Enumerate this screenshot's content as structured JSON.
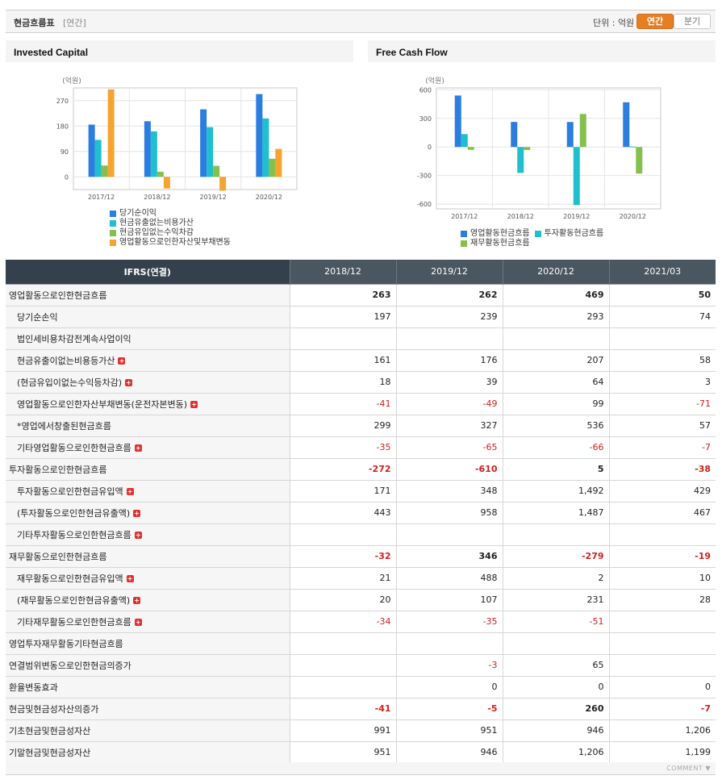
{
  "header": {
    "title": "현금흐름표",
    "subtitle": "[연간]",
    "unit_label": "단위 : 억원",
    "btn_annual": "연간",
    "btn_quarter": "분기"
  },
  "colors": {
    "blue": "#2b7de0",
    "cyan": "#1fbfcf",
    "green": "#84c04b",
    "orange": "#f5a431",
    "negative": "#d21f1f",
    "active": "#e67e22"
  },
  "invested_capital": {
    "title": "Invested Capital",
    "chart_data": {
      "type": "bar",
      "unit_label": "(억원)",
      "categories": [
        "2017/12",
        "2018/12",
        "2019/12",
        "2020/12"
      ],
      "ylim": [
        -45,
        315
      ],
      "yticks": [
        0,
        90,
        180,
        270
      ],
      "series": [
        {
          "name": "당기순이익",
          "color": "#2b7de0",
          "values": [
            185,
            197,
            239,
            293
          ]
        },
        {
          "name": "현금유출없는비용가산",
          "color": "#1fbfcf",
          "values": [
            131,
            161,
            176,
            207
          ]
        },
        {
          "name": "현금유입없는수익차감",
          "color": "#84c04b",
          "values": [
            40,
            18,
            39,
            64
          ]
        },
        {
          "name": "영업활동으로인한자산및부채변동",
          "color": "#f5a431",
          "values": [
            310,
            -41,
            -49,
            99
          ]
        }
      ]
    }
  },
  "free_cash_flow": {
    "title": "Free Cash Flow",
    "chart_data": {
      "type": "bar",
      "unit_label": "(억원)",
      "categories": [
        "2017/12",
        "2018/12",
        "2019/12",
        "2020/12"
      ],
      "ylim": [
        -650,
        620
      ],
      "yticks": [
        600,
        300,
        0,
        -300,
        -600
      ],
      "series": [
        {
          "name": "영업활동현금흐름",
          "color": "#2b7de0",
          "values": [
            540,
            263,
            262,
            469
          ]
        },
        {
          "name": "투자활동현금흐름",
          "color": "#1fbfcf",
          "values": [
            135,
            -272,
            -610,
            5
          ]
        },
        {
          "name": "재무활동현금흐름",
          "color": "#84c04b",
          "values": [
            -30,
            -32,
            346,
            -279
          ]
        }
      ]
    }
  },
  "table": {
    "header_first": "IFRS(연결)",
    "columns": [
      "2018/12",
      "2019/12",
      "2020/12",
      "2021/03"
    ],
    "rows": [
      {
        "label": "영업활동으로인한현금흐름",
        "level": "major",
        "expand": false,
        "values": [
          "263",
          "262",
          "469",
          "50"
        ]
      },
      {
        "label": "당기순손익",
        "level": "sub",
        "expand": false,
        "values": [
          "197",
          "239",
          "293",
          "74"
        ]
      },
      {
        "label": "법인세비용차감전계속사업이익",
        "level": "sub",
        "expand": false,
        "values": [
          "",
          "",
          "",
          ""
        ]
      },
      {
        "label": "현금유출이없는비용등가산",
        "level": "sub",
        "expand": true,
        "values": [
          "161",
          "176",
          "207",
          "58"
        ]
      },
      {
        "label": "(현금유입이없는수익등차감)",
        "level": "sub",
        "expand": true,
        "values": [
          "18",
          "39",
          "64",
          "3"
        ]
      },
      {
        "label": "영업활동으로인한자산부채변동(운전자본변동)",
        "level": "sub",
        "expand": true,
        "values": [
          "-41",
          "-49",
          "99",
          "-71"
        ]
      },
      {
        "label": "*영업에서창출된현금흐름",
        "level": "sub",
        "expand": false,
        "values": [
          "299",
          "327",
          "536",
          "57"
        ]
      },
      {
        "label": "기타영업활동으로인한현금흐름",
        "level": "sub",
        "expand": true,
        "values": [
          "-35",
          "-65",
          "-66",
          "-7"
        ]
      },
      {
        "label": "투자활동으로인한현금흐름",
        "level": "major",
        "expand": false,
        "values": [
          "-272",
          "-610",
          "5",
          "-38"
        ]
      },
      {
        "label": "투자활동으로인한현금유입액",
        "level": "sub",
        "expand": true,
        "values": [
          "171",
          "348",
          "1,492",
          "429"
        ]
      },
      {
        "label": "(투자활동으로인한현금유출액)",
        "level": "sub",
        "expand": true,
        "values": [
          "443",
          "958",
          "1,487",
          "467"
        ]
      },
      {
        "label": "기타투자활동으로인한현금흐름",
        "level": "sub",
        "expand": true,
        "values": [
          "",
          "",
          "",
          ""
        ]
      },
      {
        "label": "재무활동으로인한현금흐름",
        "level": "major",
        "expand": false,
        "values": [
          "-32",
          "346",
          "-279",
          "-19"
        ]
      },
      {
        "label": "재무활동으로인한현금유입액",
        "level": "sub",
        "expand": true,
        "values": [
          "21",
          "488",
          "2",
          "10"
        ]
      },
      {
        "label": "(재무활동으로인한현금유출액)",
        "level": "sub",
        "expand": true,
        "values": [
          "20",
          "107",
          "231",
          "28"
        ]
      },
      {
        "label": "기타재무활동으로인한현금흐름",
        "level": "sub",
        "expand": true,
        "values": [
          "-34",
          "-35",
          "-51",
          ""
        ]
      },
      {
        "label": "영업투자재무활동기타현금흐름",
        "level": "top",
        "expand": false,
        "values": [
          "",
          "",
          "",
          ""
        ]
      },
      {
        "label": "연결범위변동으로인한현금의증가",
        "level": "top",
        "expand": false,
        "values": [
          "",
          "-3",
          "65",
          ""
        ]
      },
      {
        "label": "환율변동효과",
        "level": "top",
        "expand": false,
        "values": [
          "",
          "0",
          "0",
          "0"
        ]
      },
      {
        "label": "현금및현금성자산의증가",
        "level": "topbold",
        "expand": false,
        "values": [
          "-41",
          "-5",
          "260",
          "-7"
        ]
      },
      {
        "label": "기초현금및현금성자산",
        "level": "top",
        "expand": false,
        "values": [
          "991",
          "951",
          "946",
          "1,206"
        ]
      },
      {
        "label": "기말현금및현금성자산",
        "level": "top",
        "expand": false,
        "values": [
          "951",
          "946",
          "1,206",
          "1,199"
        ]
      }
    ]
  },
  "footer": {
    "comment_label": "COMMENT ▼"
  }
}
